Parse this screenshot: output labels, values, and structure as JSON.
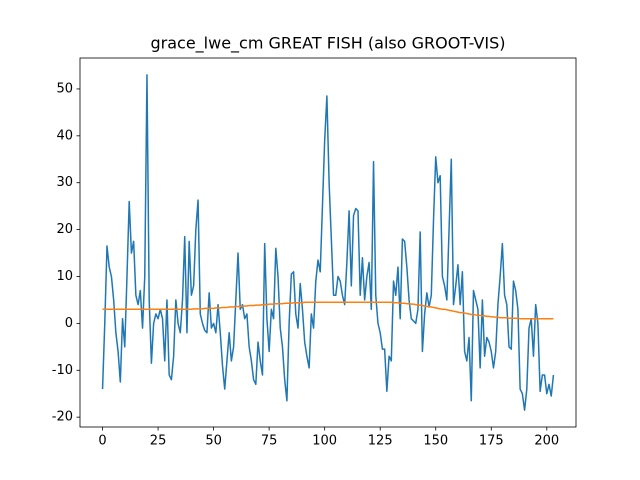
{
  "chart_data": {
    "type": "line",
    "title": "grace_lwe_cm GREAT FISH (also GROOT-VIS)",
    "x": [
      0,
      1,
      2,
      3,
      4,
      5,
      6,
      7,
      8,
      9,
      10,
      11,
      12,
      13,
      14,
      15,
      16,
      17,
      18,
      19,
      20,
      21,
      22,
      23,
      24,
      25,
      26,
      27,
      28,
      29,
      30,
      31,
      32,
      33,
      34,
      35,
      36,
      37,
      38,
      39,
      40,
      41,
      42,
      43,
      44,
      45,
      46,
      47,
      48,
      49,
      50,
      51,
      52,
      53,
      54,
      55,
      56,
      57,
      58,
      59,
      60,
      61,
      62,
      63,
      64,
      65,
      66,
      67,
      68,
      69,
      70,
      71,
      72,
      73,
      74,
      75,
      76,
      77,
      78,
      79,
      80,
      81,
      82,
      83,
      84,
      85,
      86,
      87,
      88,
      89,
      90,
      91,
      92,
      93,
      94,
      95,
      96,
      97,
      98,
      99,
      100,
      101,
      102,
      103,
      104,
      105,
      106,
      107,
      108,
      109,
      110,
      111,
      112,
      113,
      114,
      115,
      116,
      117,
      118,
      119,
      120,
      121,
      122,
      123,
      124,
      125,
      126,
      127,
      128,
      129,
      130,
      131,
      132,
      133,
      134,
      135,
      136,
      137,
      138,
      139,
      140,
      141,
      142,
      143,
      144,
      145,
      146,
      147,
      148,
      149,
      150,
      151,
      152,
      153,
      154,
      155,
      156,
      157,
      158,
      159,
      160,
      161,
      162,
      163,
      164,
      165,
      166,
      167,
      168,
      169,
      170,
      171,
      172,
      173,
      174,
      175,
      176,
      177,
      178,
      179,
      180,
      181,
      182,
      183,
      184,
      185,
      186,
      187,
      188,
      189,
      190,
      191,
      192,
      193,
      194,
      195,
      196,
      197,
      198,
      199,
      200,
      201,
      202,
      203
    ],
    "series": [
      {
        "color": "#1f77b4",
        "values": [
          -14,
          0,
          16.5,
          12,
          10,
          5,
          -2,
          -6,
          -12.5,
          1,
          -5,
          10,
          26,
          15,
          17.5,
          6,
          4,
          7,
          -1,
          10,
          53,
          5,
          -8.5,
          0,
          2,
          1,
          3,
          1,
          -8,
          5,
          -11,
          -12,
          -7,
          5,
          0,
          -2,
          5,
          18.5,
          -2,
          17.5,
          6,
          8,
          20,
          26.3,
          2,
          0,
          -1.5,
          -2,
          6.5,
          -1,
          0,
          -2,
          4,
          -2,
          -9,
          -14,
          -8,
          -2,
          -8,
          -5,
          5,
          15,
          3,
          4,
          1,
          2,
          -5,
          -8,
          -12,
          -13,
          -4,
          -8,
          -11,
          17,
          1,
          -6,
          3,
          1,
          16,
          10,
          -1,
          -5,
          -12,
          -16.5,
          0,
          10.5,
          11,
          2,
          -1,
          8.5,
          3,
          -4,
          -7,
          -9.5,
          2,
          -1,
          9,
          13.5,
          11,
          25,
          39,
          48.5,
          30,
          18,
          6,
          6,
          10,
          9,
          6,
          4,
          13,
          24,
          8,
          23,
          24.5,
          24,
          6,
          14,
          5,
          10,
          13,
          3,
          34.5,
          6,
          0,
          -2,
          -5.5,
          -5.5,
          -14.5,
          -7,
          -8,
          9,
          6,
          12,
          1,
          18,
          17.5,
          12,
          5,
          1,
          0.5,
          0,
          3,
          19.5,
          -6,
          2,
          6.5,
          3.5,
          6,
          22,
          35.5,
          30,
          31.5,
          10,
          8,
          5,
          20,
          35,
          4,
          8,
          12.5,
          4,
          11,
          -6,
          -8,
          -3,
          -16.5,
          7,
          5,
          3,
          -9.5,
          5,
          -7,
          -3,
          -4,
          -6,
          -9.5,
          -6,
          4,
          10,
          17,
          6,
          4,
          -5,
          -5.5,
          9,
          7,
          3,
          -14,
          -15,
          -18.5,
          -14,
          -1,
          1,
          -7,
          4,
          0,
          -14.5,
          -11,
          -11,
          -15,
          -13,
          -15.5,
          -11
        ]
      },
      {
        "color": "#ff7f0e",
        "values": [
          3,
          3,
          3,
          3,
          3,
          3,
          3,
          3,
          3,
          3,
          3,
          3,
          3,
          3,
          3,
          3,
          3,
          3,
          3,
          3,
          3,
          3,
          3,
          3,
          3,
          3,
          3,
          3,
          3,
          3,
          3,
          3,
          3,
          3,
          3,
          3,
          3,
          3,
          3,
          3,
          3,
          3.1,
          3.1,
          3.1,
          3.1,
          3.1,
          3.2,
          3.2,
          3.2,
          3.2,
          3.2,
          3.3,
          3.3,
          3.3,
          3.4,
          3.4,
          3.4,
          3.5,
          3.5,
          3.5,
          3.6,
          3.6,
          3.6,
          3.7,
          3.7,
          3.7,
          3.8,
          3.8,
          3.8,
          3.9,
          3.9,
          3.9,
          4,
          4,
          4,
          4.1,
          4.1,
          4.1,
          4.2,
          4.2,
          4.2,
          4.2,
          4.3,
          4.3,
          4.3,
          4.3,
          4.4,
          4.4,
          4.4,
          4.4,
          4.4,
          4.5,
          4.5,
          4.5,
          4.5,
          4.5,
          4.5,
          4.5,
          4.5,
          4.5,
          4.5,
          4.5,
          4.5,
          4.5,
          4.5,
          4.5,
          4.5,
          4.5,
          4.5,
          4.5,
          4.5,
          4.5,
          4.5,
          4.5,
          4.5,
          4.5,
          4.5,
          4.5,
          4.5,
          4.5,
          4.5,
          4.5,
          4.5,
          4.5,
          4.5,
          4.5,
          4.5,
          4.5,
          4.5,
          4.5,
          4.5,
          4.4,
          4.4,
          4.4,
          4.3,
          4.3,
          4.3,
          4.2,
          4.2,
          4.1,
          4.1,
          4,
          3.9,
          3.9,
          3.8,
          3.7,
          3.6,
          3.6,
          3.5,
          3.4,
          3.3,
          3.2,
          3.1,
          3,
          3,
          2.9,
          2.8,
          2.7,
          2.6,
          2.5,
          2.4,
          2.3,
          2.3,
          2.2,
          2.1,
          2,
          1.9,
          1.9,
          1.8,
          1.7,
          1.7,
          1.6,
          1.6,
          1.5,
          1.5,
          1.4,
          1.4,
          1.3,
          1.3,
          1.2,
          1.2,
          1.2,
          1.2,
          1.1,
          1.1,
          1.1,
          1.1,
          1.1,
          1,
          1,
          1,
          1,
          1,
          1,
          1,
          1,
          1,
          1,
          1,
          1,
          1,
          1,
          1,
          1
        ]
      }
    ],
    "xlim": [
      -10.15,
      213.15
    ],
    "xticks": [
      0,
      25,
      50,
      75,
      100,
      125,
      150,
      175,
      200
    ],
    "ylim": [
      -22.1,
      56.6
    ],
    "yticks": [
      -20,
      -10,
      0,
      10,
      20,
      30,
      40,
      50
    ]
  }
}
